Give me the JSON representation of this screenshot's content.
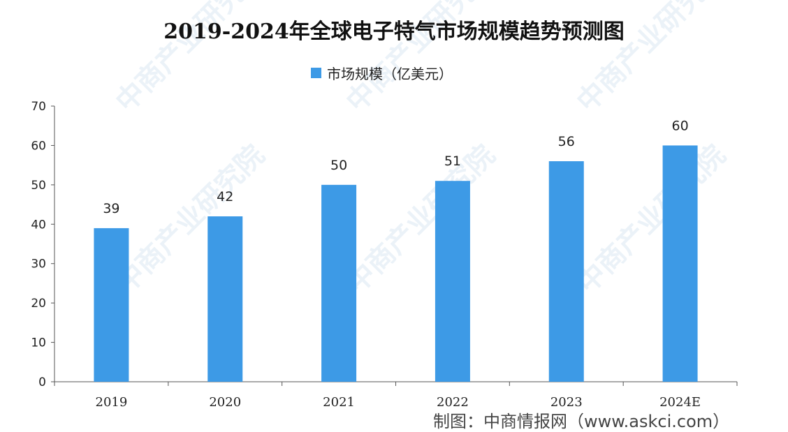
{
  "watermark": "中商产业研究院",
  "footer_text": "制图：中商情报网（www.askci.com）",
  "colors": {
    "bar": "#3d9ae6",
    "axis": "#555555"
  },
  "chart_data": {
    "type": "bar",
    "title": "2019-2024年全球电子特气市场规模趋势预测图",
    "categories": [
      "2019",
      "2020",
      "2021",
      "2022",
      "2023",
      "2024E"
    ],
    "series": [
      {
        "name": "市场规模（亿美元）",
        "values": [
          39,
          42,
          50,
          51,
          56,
          60
        ]
      }
    ],
    "xlabel": "",
    "ylabel": "",
    "ylim": [
      0,
      70
    ],
    "yticks": [
      0,
      10,
      20,
      30,
      40,
      50,
      60,
      70
    ],
    "grid": false,
    "legend": "top-center",
    "data_labels": true
  }
}
